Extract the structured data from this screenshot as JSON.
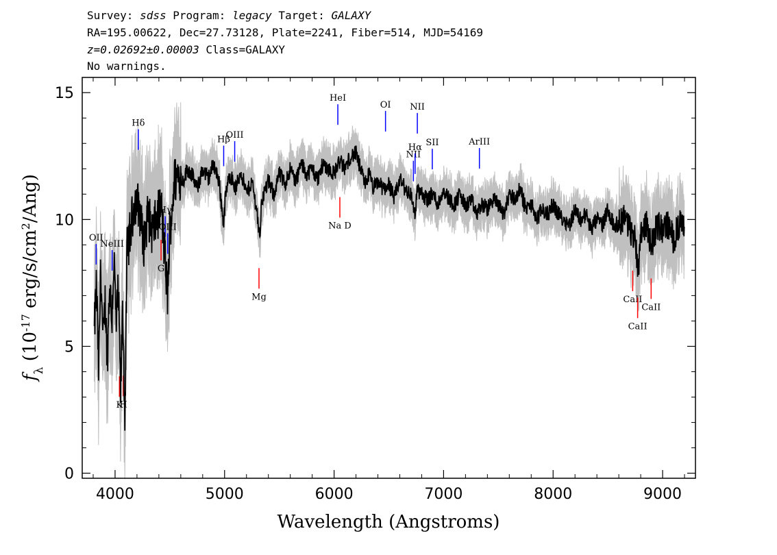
{
  "header": {
    "survey_label": "Survey:",
    "survey": "sdss",
    "program_label": "Program:",
    "program": "legacy",
    "target_label": "Target:",
    "target": "GALAXY",
    "coords_line": "RA=195.00622, Dec=27.73128, Plate=2241, Fiber=514, MJD=54169",
    "redshift": "z=0.02692±0.00003",
    "class_text": "Class=GALAXY",
    "warnings": "No warnings."
  },
  "chart_data": {
    "type": "line",
    "title": "",
    "xlabel": "Wavelength (Angstroms)",
    "ylabel": "f_λ (10^-17 erg/s/cm^2/Ang)",
    "xlim": [
      3700,
      9300
    ],
    "ylim": [
      -0.2,
      15.6
    ],
    "x_ticks": [
      4000,
      5000,
      6000,
      7000,
      8000,
      9000
    ],
    "y_ticks": [
      0,
      5,
      10,
      15
    ],
    "grid": false,
    "series": [
      {
        "color": "#000000",
        "description_points": {
          "x": [
            3810,
            3830,
            3850,
            3870,
            3890,
            3910,
            3930,
            3950,
            3970,
            3990,
            4010,
            4030,
            4050,
            4070,
            4090,
            4110,
            4140,
            4180,
            4220,
            4260,
            4300,
            4340,
            4380,
            4420,
            4460,
            4480,
            4500,
            4540,
            4580,
            4620,
            4660,
            4700,
            4750,
            4800,
            4850,
            4900,
            4950,
            4990,
            5010,
            5050,
            5100,
            5150,
            5200,
            5250,
            5300,
            5320,
            5340,
            5400,
            5450,
            5500,
            5550,
            5600,
            5650,
            5700,
            5750,
            5800,
            5850,
            5900,
            5950,
            6000,
            6050,
            6100,
            6150,
            6200,
            6240,
            6280,
            6320,
            6360,
            6400,
            6450,
            6500,
            6550,
            6600,
            6650,
            6700,
            6740,
            6760,
            6800,
            6850,
            6900,
            6950,
            7000,
            7050,
            7100,
            7150,
            7200,
            7250,
            7300,
            7350,
            7400,
            7450,
            7500,
            7550,
            7600,
            7650,
            7700,
            7750,
            7800,
            7850,
            7900,
            7950,
            8000,
            8050,
            8100,
            8150,
            8200,
            8250,
            8300,
            8350,
            8400,
            8450,
            8500,
            8550,
            8600,
            8650,
            8700,
            8750,
            8780,
            8800,
            8850,
            8900,
            8950,
            9000,
            9050,
            9100,
            9150,
            9200
          ],
          "y": [
            5.5,
            7.5,
            4.0,
            8.2,
            5.0,
            6.8,
            4.5,
            7.6,
            6.0,
            8.5,
            5.8,
            7.2,
            3.2,
            6.5,
            2.2,
            8.8,
            9.5,
            10.8,
            10.5,
            9.0,
            10.2,
            9.5,
            10.0,
            10.6,
            8.2,
            7.0,
            9.5,
            11.5,
            11.8,
            11.5,
            12.0,
            11.8,
            11.2,
            12.0,
            11.6,
            12.2,
            11.5,
            9.8,
            11.0,
            11.8,
            11.2,
            11.9,
            11.0,
            11.5,
            10.2,
            9.2,
            10.8,
            11.5,
            11.0,
            11.8,
            11.4,
            12.0,
            11.5,
            12.2,
            11.8,
            12.0,
            11.6,
            12.2,
            12.0,
            11.8,
            12.3,
            12.0,
            12.5,
            12.6,
            12.0,
            11.4,
            11.8,
            11.2,
            11.5,
            11.2,
            11.4,
            10.8,
            11.6,
            11.2,
            11.0,
            10.2,
            11.2,
            11.0,
            10.8,
            11.0,
            10.6,
            11.2,
            10.8,
            10.6,
            11.0,
            10.5,
            10.8,
            10.2,
            10.6,
            10.4,
            10.8,
            10.6,
            10.2,
            11.0,
            10.8,
            11.2,
            10.4,
            10.6,
            10.0,
            10.4,
            10.2,
            10.6,
            10.2,
            10.0,
            9.8,
            10.4,
            10.0,
            10.2,
            9.6,
            10.0,
            9.8,
            10.4,
            9.8,
            9.8,
            10.2,
            9.6,
            9.2,
            8.0,
            9.6,
            9.8,
            9.0,
            9.8,
            9.6,
            9.8,
            9.2,
            9.8,
            9.6
          ]
        }
      }
    ],
    "emission_lines": [
      {
        "label": "OII",
        "x": 3727
      },
      {
        "label": "NeIII",
        "x": 3869
      },
      {
        "label": "Hδ",
        "x": 4102
      },
      {
        "label": "Hγ",
        "x": 4341
      },
      {
        "label": "OIII",
        "x": 4363
      },
      {
        "label": "Hβ",
        "x": 4861
      },
      {
        "label": "OIII",
        "x": 4959
      },
      {
        "label": "HeI",
        "x": 5876
      },
      {
        "label": "OI",
        "x": 6300
      },
      {
        "label": "NII",
        "x": 6548
      },
      {
        "label": "Hα",
        "x": 6563
      },
      {
        "label": "NII",
        "x": 6583
      },
      {
        "label": "SII",
        "x": 6716
      },
      {
        "label": "ArIII",
        "x": 7135
      }
    ],
    "absorption_lines": [
      {
        "label": "K",
        "x": 3934
      },
      {
        "label": "H",
        "x": 3969
      },
      {
        "label": "G",
        "x": 4304
      },
      {
        "label": "Mg",
        "x": 5175
      },
      {
        "label": "Na D",
        "x": 5894
      },
      {
        "label": "CaII",
        "x": 8498
      },
      {
        "label": "CaII",
        "x": 8542
      },
      {
        "label": "CaII",
        "x": 8662
      }
    ],
    "colors": {
      "flux": "#000000",
      "error_band": "#c0c0c0",
      "emission": "#0000ff",
      "absorption": "#ff0000"
    }
  }
}
